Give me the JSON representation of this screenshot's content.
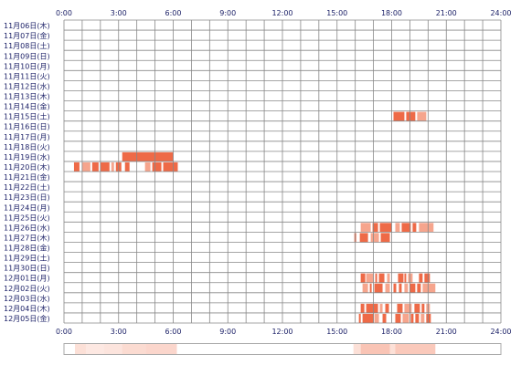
{
  "chart_data": {
    "type": "heatmap",
    "title": "",
    "xlabel": "",
    "ylabel": "",
    "x_range_hours": [
      0,
      24
    ],
    "x_ticks": [
      "0:00",
      "3:00",
      "6:00",
      "9:00",
      "12:00",
      "15:00",
      "18:00",
      "21:00",
      "24:00"
    ],
    "rows": [
      "11月06日(木)",
      "11月07日(金)",
      "11月08日(土)",
      "11月09日(日)",
      "11月10日(月)",
      "11月11日(火)",
      "11月12日(水)",
      "11月13日(木)",
      "11月14日(金)",
      "11月15日(土)",
      "11月16日(日)",
      "11月17日(月)",
      "11月18日(火)",
      "11月19日(水)",
      "11月20日(木)",
      "11月21日(金)",
      "11月22日(土)",
      "11月23日(日)",
      "11月24日(月)",
      "11月25日(火)",
      "11月26日(水)",
      "11月27日(木)",
      "11月28日(金)",
      "11月29日(土)",
      "11月30日(日)",
      "12月01日(月)",
      "12月02日(火)",
      "12月03日(水)",
      "12月04日(木)",
      "12月05日(金)"
    ],
    "activity": [
      {
        "row": 9,
        "start": 18.1,
        "end": 18.7
      },
      {
        "row": 9,
        "start": 18.8,
        "end": 19.3
      },
      {
        "row": 9,
        "start": 19.4,
        "end": 19.9
      },
      {
        "row": 13,
        "start": 3.2,
        "end": 6.0
      },
      {
        "row": 14,
        "start": 0.55,
        "end": 0.85
      },
      {
        "row": 14,
        "start": 1.0,
        "end": 1.45
      },
      {
        "row": 14,
        "start": 1.55,
        "end": 1.9
      },
      {
        "row": 14,
        "start": 2.0,
        "end": 2.5
      },
      {
        "row": 14,
        "start": 2.6,
        "end": 2.75
      },
      {
        "row": 14,
        "start": 2.85,
        "end": 3.15
      },
      {
        "row": 14,
        "start": 3.35,
        "end": 3.6
      },
      {
        "row": 14,
        "start": 4.45,
        "end": 4.75
      },
      {
        "row": 14,
        "start": 4.85,
        "end": 5.35
      },
      {
        "row": 14,
        "start": 5.45,
        "end": 6.25
      },
      {
        "row": 20,
        "start": 16.3,
        "end": 16.85
      },
      {
        "row": 20,
        "start": 16.95,
        "end": 17.25
      },
      {
        "row": 20,
        "start": 17.35,
        "end": 18.0
      },
      {
        "row": 20,
        "start": 18.2,
        "end": 18.45
      },
      {
        "row": 20,
        "start": 18.55,
        "end": 19.05
      },
      {
        "row": 20,
        "start": 19.15,
        "end": 19.35
      },
      {
        "row": 20,
        "start": 19.5,
        "end": 20.3
      },
      {
        "row": 21,
        "start": 15.95,
        "end": 16.05
      },
      {
        "row": 21,
        "start": 16.25,
        "end": 16.7
      },
      {
        "row": 21,
        "start": 16.85,
        "end": 17.3
      },
      {
        "row": 21,
        "start": 17.4,
        "end": 17.9
      },
      {
        "row": 25,
        "start": 16.3,
        "end": 16.55
      },
      {
        "row": 25,
        "start": 16.6,
        "end": 17.0
      },
      {
        "row": 25,
        "start": 17.1,
        "end": 17.2
      },
      {
        "row": 25,
        "start": 17.3,
        "end": 17.6
      },
      {
        "row": 25,
        "start": 17.75,
        "end": 17.9
      },
      {
        "row": 25,
        "start": 18.35,
        "end": 18.65
      },
      {
        "row": 25,
        "start": 18.7,
        "end": 18.8
      },
      {
        "row": 25,
        "start": 18.9,
        "end": 19.15
      },
      {
        "row": 25,
        "start": 19.5,
        "end": 19.7
      },
      {
        "row": 25,
        "start": 19.8,
        "end": 20.1
      },
      {
        "row": 26,
        "start": 16.4,
        "end": 16.7
      },
      {
        "row": 26,
        "start": 16.8,
        "end": 16.9
      },
      {
        "row": 26,
        "start": 17.05,
        "end": 17.5
      },
      {
        "row": 26,
        "start": 17.65,
        "end": 17.9
      },
      {
        "row": 26,
        "start": 18.1,
        "end": 18.25
      },
      {
        "row": 26,
        "start": 18.4,
        "end": 18.55
      },
      {
        "row": 26,
        "start": 18.7,
        "end": 18.9
      },
      {
        "row": 26,
        "start": 19.0,
        "end": 19.3
      },
      {
        "row": 26,
        "start": 19.4,
        "end": 19.6
      },
      {
        "row": 26,
        "start": 19.7,
        "end": 20.4
      },
      {
        "row": 28,
        "start": 16.3,
        "end": 16.5
      },
      {
        "row": 28,
        "start": 16.6,
        "end": 17.25
      },
      {
        "row": 28,
        "start": 17.35,
        "end": 17.5
      },
      {
        "row": 28,
        "start": 17.65,
        "end": 17.85
      },
      {
        "row": 28,
        "start": 18.3,
        "end": 18.6
      },
      {
        "row": 28,
        "start": 18.7,
        "end": 19.1
      },
      {
        "row": 28,
        "start": 19.25,
        "end": 19.55
      },
      {
        "row": 28,
        "start": 19.65,
        "end": 19.8
      },
      {
        "row": 28,
        "start": 19.9,
        "end": 20.1
      },
      {
        "row": 29,
        "start": 16.2,
        "end": 16.3
      },
      {
        "row": 29,
        "start": 16.4,
        "end": 17.0
      },
      {
        "row": 29,
        "start": 17.05,
        "end": 17.3
      },
      {
        "row": 29,
        "start": 17.5,
        "end": 17.7
      },
      {
        "row": 29,
        "start": 18.2,
        "end": 18.5
      },
      {
        "row": 29,
        "start": 18.6,
        "end": 18.95
      },
      {
        "row": 29,
        "start": 19.05,
        "end": 19.2
      },
      {
        "row": 29,
        "start": 19.3,
        "end": 19.5
      },
      {
        "row": 29,
        "start": 19.6,
        "end": 19.8
      },
      {
        "row": 29,
        "start": 19.9,
        "end": 20.15
      }
    ],
    "summary_strip": [
      {
        "start": 0.6,
        "end": 1.2,
        "level": 0.35
      },
      {
        "start": 1.2,
        "end": 2.2,
        "level": 0.25
      },
      {
        "start": 2.2,
        "end": 3.2,
        "level": 0.3
      },
      {
        "start": 3.2,
        "end": 4.5,
        "level": 0.4
      },
      {
        "start": 4.5,
        "end": 6.2,
        "level": 0.45
      },
      {
        "start": 15.9,
        "end": 16.3,
        "level": 0.35
      },
      {
        "start": 16.3,
        "end": 17.9,
        "level": 0.65
      },
      {
        "start": 17.9,
        "end": 18.2,
        "level": 0.35
      },
      {
        "start": 18.2,
        "end": 20.4,
        "level": 0.6
      }
    ],
    "colors": {
      "activity": "#ee6a47",
      "activity_light": "#f6a58d",
      "grid": "#888888",
      "label": "#1a1f66",
      "strip": "#f6a58d",
      "strip_border": "#aaaaaa"
    }
  }
}
